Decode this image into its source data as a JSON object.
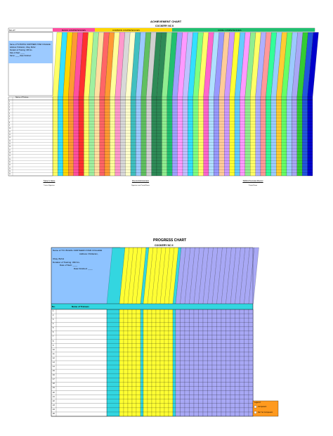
{
  "achievement": {
    "title": "ACHIEVEMENT CHART",
    "subtitle": "COCKERY NC II",
    "corner_label": "NC-2?",
    "groups": {
      "basic": "BASIC COMPETENCIES",
      "common": "COMMON COMPETENCIES",
      "core": "CORE COMPETENCIES"
    },
    "info_lines": [
      "Name of TVI BOHOL NORTHERN STAR COLLEGE",
      "Address: Poblacion, Ubay, Bohol",
      "Duration of Training: 336 hrs.",
      "Date of Start: ____",
      "Name: ____  Date Finished:"
    ],
    "name_header": "Name of Trainee",
    "rows": [
      "1",
      "2",
      "3",
      "4",
      "5",
      "6",
      "7",
      "8",
      "9",
      "10",
      "11",
      "12",
      "13",
      "14",
      "15",
      "16",
      "17",
      "18",
      "19",
      "20",
      "21",
      "22",
      "23",
      "24",
      "25"
    ],
    "signatures": [
      {
        "label": "Trainer's Name",
        "sub": "Trainer Signature"
      },
      {
        "label": "Director/Administrator",
        "sub": "Signature over Printed Name"
      },
      {
        "label": "TESDA Provincial Director",
        "sub": "Printed Name"
      }
    ],
    "colors": {
      "core_group": "#20c070",
      "basic_group": "#ff4fa0",
      "common_group": "#ffd700"
    }
  },
  "progress": {
    "title": "PROGRESS CHART",
    "subtitle": "COOKERY NC II",
    "info_lines": [
      "Name of TVI: BOHOL NORTHERN STAR COLLEGE",
      "Address: Poblacion,",
      "Ubay, Bohol",
      "Duration of Training: 336 hrs.",
      "Date of Start: ____",
      "Date Finished: ____"
    ],
    "no_header": "No.",
    "name_header": "Name of Trainees",
    "rows": [
      "1",
      "2",
      "3",
      "4",
      "5",
      "6",
      "7",
      "8",
      "9",
      "10",
      "11",
      "12",
      "13",
      "14",
      "15",
      "16",
      "17",
      "18",
      "19",
      "20",
      "21",
      "22",
      "23",
      "24",
      "25"
    ],
    "legend": {
      "title": "Legend:",
      "competent": "Competent",
      "not_yet": "Not Yet Competent"
    },
    "colors": {
      "header_blue": "#8ec3ff",
      "cyan": "#33d6e0",
      "yellow": "#ffff33",
      "violet": "#a8a8f5",
      "legend_orange": "#ff9a1f"
    }
  }
}
